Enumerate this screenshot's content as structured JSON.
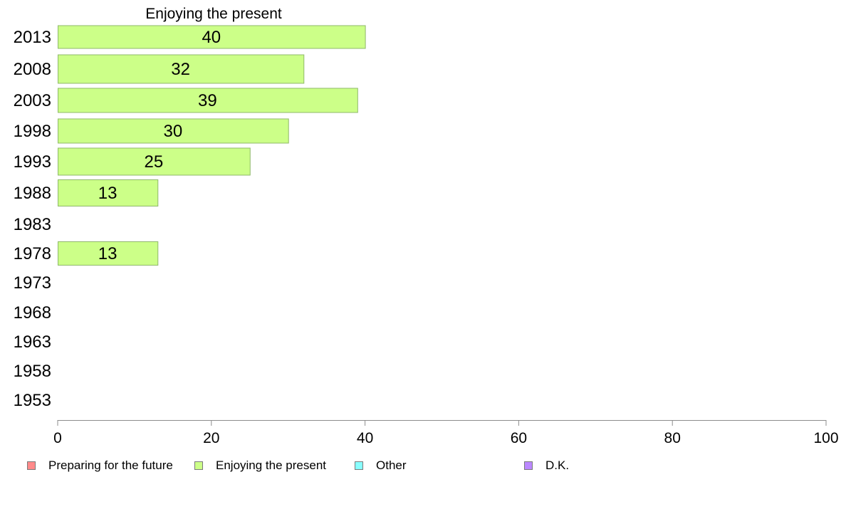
{
  "chart_data": {
    "type": "bar",
    "orientation": "horizontal",
    "title": "Enjoying the present",
    "categories": [
      "2013",
      "2008",
      "2003",
      "1998",
      "1993",
      "1988",
      "1983",
      "1978",
      "1973",
      "1968",
      "1963",
      "1958",
      "1953"
    ],
    "series": [
      {
        "name": "Enjoying the present",
        "values": [
          40,
          32,
          39,
          30,
          25,
          13,
          null,
          13,
          null,
          null,
          null,
          null,
          null
        ],
        "labels": [
          "40",
          "32",
          "39",
          "30",
          "25",
          "13",
          "",
          "13",
          "",
          "",
          "",
          "",
          ""
        ],
        "color": "#ccff88"
      }
    ],
    "xlim": [
      0,
      100
    ],
    "xticks": [
      "0",
      "20",
      "40",
      "60",
      "80",
      "100"
    ],
    "xlabel": "",
    "ylabel": "",
    "grid": false,
    "legend_position": "bottom",
    "legend": [
      {
        "name": "Preparing for the future",
        "color": "#ff8a8a"
      },
      {
        "name": "Enjoying the present",
        "color": "#ccff88"
      },
      {
        "name": "Other",
        "color": "#88ffff"
      },
      {
        "name": "D.K.",
        "color": "#bb88ff"
      }
    ]
  }
}
